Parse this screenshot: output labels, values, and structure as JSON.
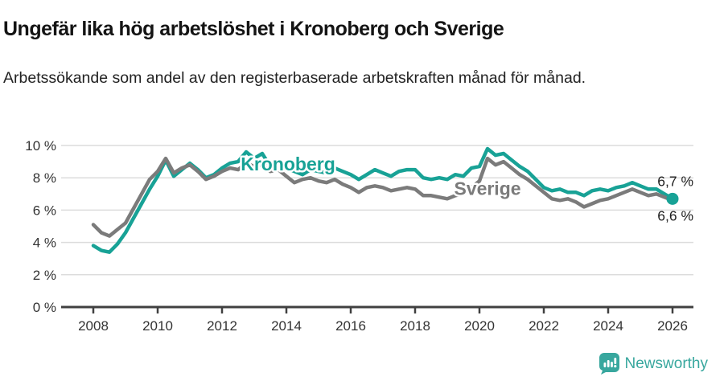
{
  "header": {
    "title": "Ungefär lika hög arbetslöshet i Kronoberg och Sverige",
    "subtitle": "Arbetssökande som andel av den registerbaserade arbetskraften månad för månad."
  },
  "footer": {
    "brand": "Newsworthy",
    "brand_color": "#38a79e",
    "logo_icon": "bar-chart-pin-icon"
  },
  "colors": {
    "kronoberg_line": "#18a296",
    "sverige_line": "#7b7b7b",
    "grid": "#dcdcdc",
    "axis": "#404040",
    "axis_text": "#333333",
    "value_label_text": "#1f1f1f",
    "label_halo": "#ffffff"
  },
  "chart_data": {
    "type": "line",
    "title": "Ungefär lika hög arbetslöshet i Kronoberg och Sverige",
    "xlabel": "",
    "ylabel": "Arbetssökande som andel av den registerbaserade arbetskraften",
    "unit": "%",
    "grid": true,
    "ylim": [
      0,
      10.5
    ],
    "xlim": [
      2007,
      2026.6
    ],
    "x_start": 2008,
    "x_step": 0.25,
    "x_ticks": [
      2008,
      2010,
      2012,
      2014,
      2016,
      2018,
      2020,
      2022,
      2024,
      2026
    ],
    "x_tick_labels": [
      "2008",
      "2010",
      "2012",
      "2014",
      "2016",
      "2018",
      "2020",
      "2022",
      "2024",
      "2026"
    ],
    "y_ticks": [
      0,
      2,
      4,
      6,
      8,
      10
    ],
    "y_tick_labels": [
      "0 %",
      "2 %",
      "4 %",
      "6 %",
      "8 %",
      "10 %"
    ],
    "legend_position": "inline-labels",
    "series": [
      {
        "name": "Kronoberg",
        "color": "#18a296",
        "end_label": "6,7 %",
        "end_value": 6.7,
        "marker_end": true,
        "label_anchor": {
          "year": 2014.05,
          "value": 8.85
        },
        "values": [
          3.8,
          3.5,
          3.4,
          3.9,
          4.6,
          5.5,
          6.4,
          7.3,
          8.1,
          9.1,
          8.1,
          8.5,
          8.9,
          8.5,
          8.0,
          8.2,
          8.6,
          8.9,
          9.0,
          9.6,
          9.2,
          9.5,
          8.7,
          8.8,
          8.6,
          8.4,
          8.2,
          8.5,
          8.4,
          8.3,
          8.6,
          8.4,
          8.2,
          7.9,
          8.2,
          8.5,
          8.3,
          8.1,
          8.4,
          8.5,
          8.5,
          8.0,
          7.9,
          8.0,
          7.9,
          8.2,
          8.1,
          8.6,
          8.7,
          9.8,
          9.4,
          9.5,
          9.1,
          8.7,
          8.4,
          7.9,
          7.4,
          7.2,
          7.3,
          7.1,
          7.1,
          6.9,
          7.2,
          7.3,
          7.2,
          7.4,
          7.5,
          7.7,
          7.5,
          7.3,
          7.3,
          7.0,
          6.7
        ]
      },
      {
        "name": "Sverige",
        "color": "#7b7b7b",
        "end_label": "6,6 %",
        "end_value": 6.6,
        "marker_end": false,
        "label_anchor": {
          "year": 2020.25,
          "value": 7.35
        },
        "values": [
          5.1,
          4.6,
          4.4,
          4.8,
          5.2,
          6.1,
          7.0,
          7.9,
          8.4,
          9.2,
          8.3,
          8.6,
          8.8,
          8.4,
          7.9,
          8.1,
          8.4,
          8.6,
          8.5,
          8.9,
          8.7,
          8.8,
          8.4,
          8.5,
          8.1,
          7.7,
          7.9,
          8.0,
          7.8,
          7.7,
          7.9,
          7.6,
          7.4,
          7.1,
          7.4,
          7.5,
          7.4,
          7.2,
          7.3,
          7.4,
          7.3,
          6.9,
          6.9,
          6.8,
          6.7,
          6.9,
          7.0,
          7.4,
          7.8,
          9.2,
          8.8,
          9.0,
          8.6,
          8.2,
          7.9,
          7.5,
          7.1,
          6.7,
          6.6,
          6.7,
          6.5,
          6.2,
          6.4,
          6.6,
          6.7,
          6.9,
          7.1,
          7.3,
          7.1,
          6.9,
          7.0,
          6.8,
          6.6
        ]
      }
    ]
  }
}
